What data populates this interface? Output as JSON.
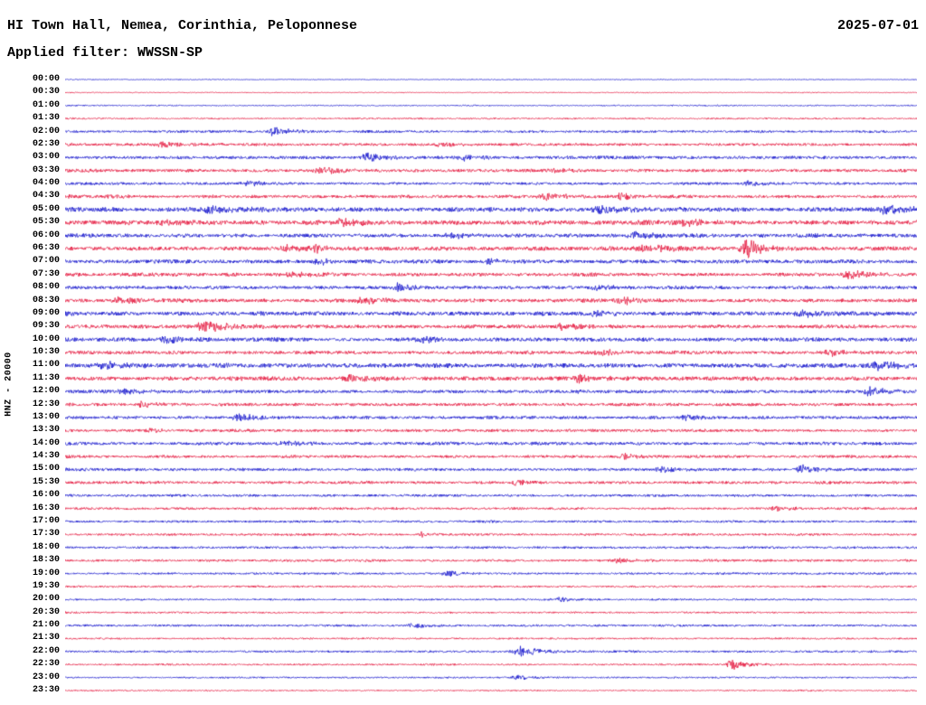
{
  "header": {
    "station_title": "HI Town Hall, Nemea, Corinthia, Peloponnese",
    "date": "2025-07-01",
    "filter_label": "Applied filter: WWSSN-SP"
  },
  "axis": {
    "channel_label": "HNZ - 20000"
  },
  "chart_data": {
    "type": "line",
    "subtype": "helicorder-dayplot",
    "title": "HI Town Hall, Nemea, Corinthia, Peloponnese",
    "date": "2025-07-01",
    "filter": "WWSSN-SP",
    "channel": "HNZ",
    "scale": 20000,
    "minutes_per_row": 30,
    "rows": 48,
    "colors": {
      "pattern": [
        "#1414cc",
        "#e4163c"
      ]
    },
    "row_times": [
      "00:00",
      "00:30",
      "01:00",
      "01:30",
      "02:00",
      "02:30",
      "03:00",
      "03:30",
      "04:00",
      "04:30",
      "05:00",
      "05:30",
      "06:00",
      "06:30",
      "07:00",
      "07:30",
      "08:00",
      "08:30",
      "09:00",
      "09:30",
      "10:00",
      "10:30",
      "11:00",
      "11:30",
      "12:00",
      "12:30",
      "13:00",
      "13:30",
      "14:00",
      "14:30",
      "15:00",
      "15:30",
      "16:00",
      "16:30",
      "17:00",
      "17:30",
      "18:00",
      "18:30",
      "19:00",
      "19:30",
      "20:00",
      "20:30",
      "21:00",
      "21:30",
      "22:00",
      "22:30",
      "23:00",
      "23:30"
    ],
    "row_amplitudes": [
      0.5,
      0.5,
      0.7,
      0.9,
      1.4,
      1.6,
      1.8,
      1.8,
      1.6,
      1.8,
      2.6,
      2.6,
      2.2,
      2.4,
      2.2,
      2.0,
      2.0,
      2.2,
      2.4,
      2.2,
      2.4,
      2.0,
      2.6,
      2.4,
      2.0,
      1.8,
      1.8,
      1.6,
      1.8,
      1.6,
      1.6,
      1.6,
      1.4,
      1.4,
      1.3,
      1.3,
      1.3,
      1.4,
      1.2,
      1.1,
      1.0,
      1.0,
      1.2,
      1.0,
      1.2,
      1.0,
      0.9,
      0.8
    ],
    "events": [
      {
        "row": 4,
        "x": 0.245,
        "amp": 5,
        "w": 4
      },
      {
        "row": 5,
        "x": 0.115,
        "amp": 3,
        "w": 5
      },
      {
        "row": 5,
        "x": 0.44,
        "amp": 3,
        "w": 6
      },
      {
        "row": 6,
        "x": 0.355,
        "amp": 6,
        "w": 4
      },
      {
        "row": 6,
        "x": 0.47,
        "amp": 3,
        "w": 5
      },
      {
        "row": 7,
        "x": 0.3,
        "amp": 4,
        "w": 6
      },
      {
        "row": 7,
        "x": 0.575,
        "amp": 3,
        "w": 5
      },
      {
        "row": 8,
        "x": 0.215,
        "amp": 3,
        "w": 5
      },
      {
        "row": 8,
        "x": 0.8,
        "amp": 3,
        "w": 5
      },
      {
        "row": 9,
        "x": 0.055,
        "amp": 3,
        "w": 4
      },
      {
        "row": 9,
        "x": 0.565,
        "amp": 4,
        "w": 6
      },
      {
        "row": 9,
        "x": 0.655,
        "amp": 4,
        "w": 5
      },
      {
        "row": 10,
        "x": 0.17,
        "amp": 4,
        "w": 8
      },
      {
        "row": 10,
        "x": 0.63,
        "amp": 4,
        "w": 8
      },
      {
        "row": 10,
        "x": 0.965,
        "amp": 4,
        "w": 6
      },
      {
        "row": 11,
        "x": 0.115,
        "amp": 3,
        "w": 5
      },
      {
        "row": 11,
        "x": 0.325,
        "amp": 4,
        "w": 6
      },
      {
        "row": 11,
        "x": 0.73,
        "amp": 4,
        "w": 6
      },
      {
        "row": 12,
        "x": 0.455,
        "amp": 3,
        "w": 6
      },
      {
        "row": 12,
        "x": 0.67,
        "amp": 4,
        "w": 6
      },
      {
        "row": 13,
        "x": 0.26,
        "amp": 4,
        "w": 5
      },
      {
        "row": 13,
        "x": 0.295,
        "amp": 4,
        "w": 4
      },
      {
        "row": 13,
        "x": 0.68,
        "amp": 4,
        "w": 6
      },
      {
        "row": 13,
        "x": 0.8,
        "amp": 11,
        "w": 5
      },
      {
        "row": 14,
        "x": 0.3,
        "amp": 3,
        "w": 5
      },
      {
        "row": 14,
        "x": 0.5,
        "amp": 3,
        "w": 5
      },
      {
        "row": 15,
        "x": 0.265,
        "amp": 3,
        "w": 5
      },
      {
        "row": 15,
        "x": 0.92,
        "amp": 5,
        "w": 5
      },
      {
        "row": 16,
        "x": 0.39,
        "amp": 5,
        "w": 4
      },
      {
        "row": 16,
        "x": 0.625,
        "amp": 4,
        "w": 5
      },
      {
        "row": 17,
        "x": 0.065,
        "amp": 4,
        "w": 5
      },
      {
        "row": 17,
        "x": 0.35,
        "amp": 4,
        "w": 5
      },
      {
        "row": 17,
        "x": 0.655,
        "amp": 4,
        "w": 5
      },
      {
        "row": 18,
        "x": 0.625,
        "amp": 4,
        "w": 5
      },
      {
        "row": 18,
        "x": 0.865,
        "amp": 4,
        "w": 5
      },
      {
        "row": 19,
        "x": 0.165,
        "amp": 6,
        "w": 7
      },
      {
        "row": 19,
        "x": 0.585,
        "amp": 4,
        "w": 6
      },
      {
        "row": 20,
        "x": 0.12,
        "amp": 4,
        "w": 6
      },
      {
        "row": 20,
        "x": 0.42,
        "amp": 4,
        "w": 5
      },
      {
        "row": 21,
        "x": 0.63,
        "amp": 4,
        "w": 5
      },
      {
        "row": 21,
        "x": 0.895,
        "amp": 4,
        "w": 5
      },
      {
        "row": 22,
        "x": 0.045,
        "amp": 4,
        "w": 7
      },
      {
        "row": 22,
        "x": 0.955,
        "amp": 5,
        "w": 7
      },
      {
        "row": 23,
        "x": 0.33,
        "amp": 4,
        "w": 6
      },
      {
        "row": 23,
        "x": 0.605,
        "amp": 5,
        "w": 5
      },
      {
        "row": 24,
        "x": 0.07,
        "amp": 3,
        "w": 5
      },
      {
        "row": 24,
        "x": 0.945,
        "amp": 5,
        "w": 5
      },
      {
        "row": 25,
        "x": 0.09,
        "amp": 4,
        "w": 4
      },
      {
        "row": 26,
        "x": 0.205,
        "amp": 4,
        "w": 6
      },
      {
        "row": 26,
        "x": 0.73,
        "amp": 4,
        "w": 4
      },
      {
        "row": 27,
        "x": 0.1,
        "amp": 3,
        "w": 4
      },
      {
        "row": 28,
        "x": 0.26,
        "amp": 4,
        "w": 5
      },
      {
        "row": 29,
        "x": 0.655,
        "amp": 4,
        "w": 4
      },
      {
        "row": 30,
        "x": 0.7,
        "amp": 3,
        "w": 4
      },
      {
        "row": 30,
        "x": 0.865,
        "amp": 5,
        "w": 4
      },
      {
        "row": 31,
        "x": 0.53,
        "amp": 4,
        "w": 4
      },
      {
        "row": 33,
        "x": 0.835,
        "amp": 3,
        "w": 4
      },
      {
        "row": 35,
        "x": 0.42,
        "amp": 3,
        "w": 4
      },
      {
        "row": 37,
        "x": 0.65,
        "amp": 3,
        "w": 4
      },
      {
        "row": 38,
        "x": 0.45,
        "amp": 3,
        "w": 5
      },
      {
        "row": 40,
        "x": 0.58,
        "amp": 3,
        "w": 4
      },
      {
        "row": 42,
        "x": 0.41,
        "amp": 3,
        "w": 5
      },
      {
        "row": 44,
        "x": 0.535,
        "amp": 6,
        "w": 6
      },
      {
        "row": 45,
        "x": 0.785,
        "amp": 6,
        "w": 5
      },
      {
        "row": 46,
        "x": 0.53,
        "amp": 3,
        "w": 4
      }
    ]
  }
}
